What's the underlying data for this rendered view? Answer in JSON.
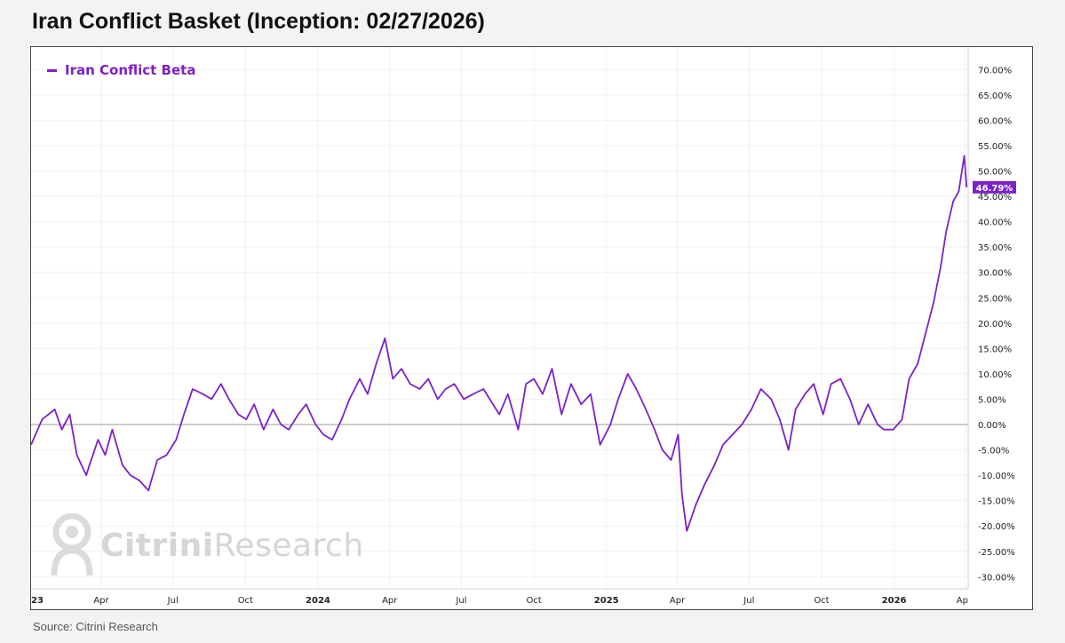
{
  "title": "Iran Conflict Basket (Inception: 02/27/2026)",
  "source": "Source: Citrini Research",
  "watermark": {
    "bold": "Citrini",
    "light": "Research"
  },
  "colors": {
    "series": "#7b22c6",
    "zero_line": "#9a9a9a",
    "axis_text": "#222222",
    "grid": "#f2f2f2"
  },
  "chart_data": {
    "type": "line",
    "legend_position": "top-left",
    "grid": true,
    "ylim": [
      -33,
      73
    ],
    "xlim": [
      "2023-01-02",
      "2026-04-05"
    ],
    "y_ticks": [
      70,
      65,
      60,
      55,
      50,
      45,
      40,
      35,
      30,
      25,
      20,
      15,
      10,
      5,
      0,
      -5,
      -10,
      -15,
      -20,
      -25,
      -30
    ],
    "y_tick_labels": [
      "70.00%",
      "65.00%",
      "60.00%",
      "55.00%",
      "50.00%",
      "45.00%",
      "40.00%",
      "35.00%",
      "30.00%",
      "25.00%",
      "20.00%",
      "15.00%",
      "10.00%",
      "5.00%",
      "0.00%",
      "-5.00%",
      "-10.00%",
      "-15.00%",
      "-20.00%",
      "-25.00%",
      "-30.00%"
    ],
    "x_ticks": [
      {
        "label": "23",
        "date": "2023-01-01",
        "bold": true
      },
      {
        "label": "Apr",
        "date": "2023-04-01",
        "bold": false
      },
      {
        "label": "Jul",
        "date": "2023-07-01",
        "bold": false
      },
      {
        "label": "Oct",
        "date": "2023-10-01",
        "bold": false
      },
      {
        "label": "2024",
        "date": "2024-01-01",
        "bold": true
      },
      {
        "label": "Apr",
        "date": "2024-04-01",
        "bold": false
      },
      {
        "label": "Jul",
        "date": "2024-07-01",
        "bold": false
      },
      {
        "label": "Oct",
        "date": "2024-10-01",
        "bold": false
      },
      {
        "label": "2025",
        "date": "2025-01-01",
        "bold": true
      },
      {
        "label": "Apr",
        "date": "2025-04-01",
        "bold": false
      },
      {
        "label": "Jul",
        "date": "2025-07-01",
        "bold": false
      },
      {
        "label": "Oct",
        "date": "2025-10-01",
        "bold": false
      },
      {
        "label": "2026",
        "date": "2026-01-01",
        "bold": true
      },
      {
        "label": "Ap",
        "date": "2026-04-01",
        "bold": false
      }
    ],
    "last_value_label": "46.79%",
    "series": [
      {
        "name": "Iran Conflict Beta",
        "x": [
          "2023-01-02",
          "2023-01-16",
          "2023-02-01",
          "2023-02-10",
          "2023-02-20",
          "2023-03-01",
          "2023-03-13",
          "2023-03-17",
          "2023-03-28",
          "2023-04-06",
          "2023-04-15",
          "2023-04-28",
          "2023-05-08",
          "2023-05-19",
          "2023-05-31",
          "2023-06-11",
          "2023-06-23",
          "2023-07-05",
          "2023-07-15",
          "2023-07-26",
          "2023-08-08",
          "2023-08-19",
          "2023-08-31",
          "2023-09-10",
          "2023-09-22",
          "2023-10-02",
          "2023-10-12",
          "2023-10-24",
          "2023-11-05",
          "2023-11-15",
          "2023-11-25",
          "2023-12-07",
          "2023-12-17",
          "2023-12-29",
          "2024-01-08",
          "2024-01-19",
          "2024-01-31",
          "2024-02-10",
          "2024-02-23",
          "2024-03-04",
          "2024-03-15",
          "2024-03-26",
          "2024-04-05",
          "2024-04-16",
          "2024-04-27",
          "2024-05-09",
          "2024-05-20",
          "2024-06-01",
          "2024-06-11",
          "2024-06-22",
          "2024-07-04",
          "2024-07-16",
          "2024-07-29",
          "2024-08-06",
          "2024-08-18",
          "2024-08-29",
          "2024-09-11",
          "2024-09-21",
          "2024-10-01",
          "2024-10-12",
          "2024-10-24",
          "2024-11-05",
          "2024-11-17",
          "2024-11-30",
          "2024-12-12",
          "2024-12-24",
          "2025-01-06",
          "2025-01-16",
          "2025-01-28",
          "2025-02-08",
          "2025-02-20",
          "2025-03-03",
          "2025-03-13",
          "2025-03-24",
          "2025-04-02",
          "2025-04-07",
          "2025-04-13",
          "2025-04-24",
          "2025-05-05",
          "2025-05-18",
          "2025-05-29",
          "2025-06-10",
          "2025-06-22",
          "2025-07-04",
          "2025-07-16",
          "2025-07-29",
          "2025-08-09",
          "2025-08-20",
          "2025-08-29",
          "2025-09-10",
          "2025-09-21",
          "2025-10-03",
          "2025-10-13",
          "2025-10-25",
          "2025-11-06",
          "2025-11-17",
          "2025-11-29",
          "2025-12-11",
          "2025-12-19",
          "2025-12-31",
          "2026-01-11",
          "2026-01-20",
          "2026-01-31",
          "2026-02-10",
          "2026-02-20",
          "2026-03-01",
          "2026-03-08",
          "2026-03-17",
          "2026-03-24",
          "2026-03-31",
          "2026-04-03"
        ],
        "values": [
          -4,
          1,
          3,
          -1,
          2,
          -6,
          -10,
          -8,
          -3,
          -6,
          -1,
          -8,
          -10,
          -11,
          -13,
          -7,
          -6,
          -3,
          2,
          7,
          6,
          5,
          8,
          5,
          2,
          1,
          4,
          -1,
          3,
          0,
          -1,
          2,
          4,
          0,
          -2,
          -3,
          1,
          5,
          9,
          6,
          12,
          17,
          9,
          11,
          8,
          7,
          9,
          5,
          7,
          8,
          5,
          6,
          7,
          5,
          2,
          6,
          -1,
          8,
          9,
          6,
          11,
          2,
          8,
          4,
          6,
          -4,
          0,
          5,
          10,
          7,
          3,
          -1,
          -5,
          -7,
          -2,
          -14,
          -21,
          -16,
          -12,
          -8,
          -4,
          -2,
          0,
          3,
          7,
          5,
          1,
          -5,
          3,
          6,
          8,
          2,
          8,
          9,
          5,
          0,
          4,
          0,
          -1,
          -1,
          1,
          9,
          12,
          18,
          24,
          31,
          38,
          44,
          46,
          53,
          46.79
        ]
      }
    ]
  }
}
